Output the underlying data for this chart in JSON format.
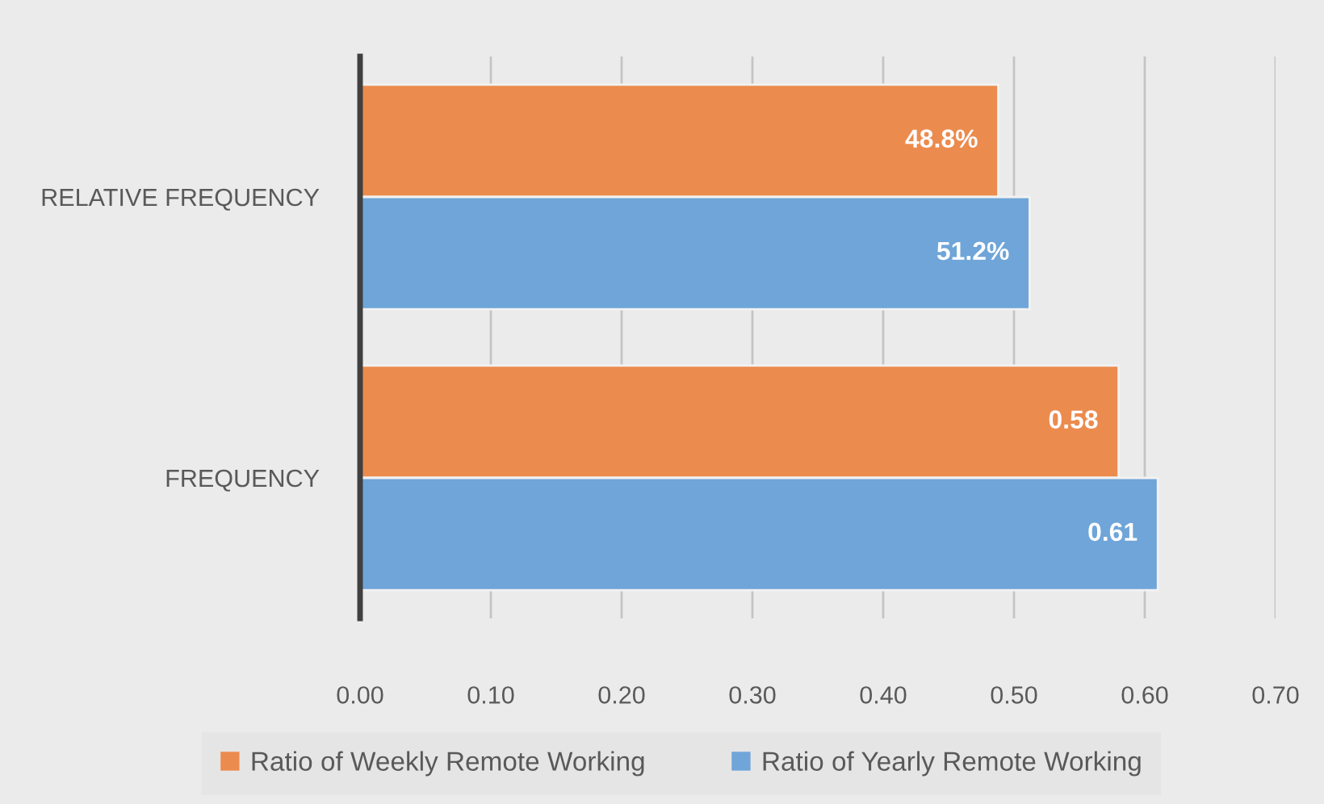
{
  "chart_data": {
    "type": "bar",
    "orientation": "horizontal",
    "categories": [
      "RELATIVE FREQUENCY",
      "FREQUENCY"
    ],
    "series": [
      {
        "name": "Ratio of Weekly Remote Working",
        "color": "#ec8b4e",
        "values": [
          0.488,
          0.58
        ],
        "value_labels": [
          "48.8%",
          "0.58"
        ]
      },
      {
        "name": "Ratio of Yearly Remote Working",
        "color": "#6fa5d8",
        "values": [
          0.512,
          0.61
        ],
        "value_labels": [
          "51.2%",
          "0.61"
        ]
      }
    ],
    "xlim": [
      0,
      0.7
    ],
    "xticks": [
      {
        "value": 0,
        "label": "0.00"
      },
      {
        "value": 0.1,
        "label": "0.10"
      },
      {
        "value": 0.2,
        "label": "0.20"
      },
      {
        "value": 0.3,
        "label": "0.30"
      },
      {
        "value": 0.4,
        "label": "0.40"
      },
      {
        "value": 0.5,
        "label": "0.50"
      },
      {
        "value": 0.6,
        "label": "0.60"
      },
      {
        "value": 0.7,
        "label": "0.70"
      }
    ],
    "grid": "x",
    "legend": "bottom"
  }
}
